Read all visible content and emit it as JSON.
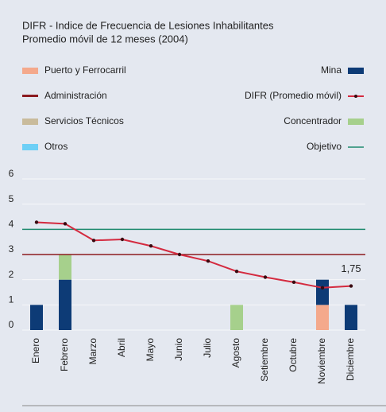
{
  "chart_data": {
    "type": "bar",
    "title": "DIFR - Indice de Frecuencia de Lesiones Inhabilitantes",
    "subtitle": "Promedio móvil de 12 meses (2004)",
    "categories": [
      "Enero",
      "Febrero",
      "Marzo",
      "Abril",
      "Mayo",
      "Junio",
      "Julio",
      "Agosto",
      "Setiembre",
      "Octubre",
      "Noviembre",
      "Diciembre"
    ],
    "stacked": true,
    "series": [
      {
        "name": "Puerto y Ferrocarril",
        "color": "#f4a98c",
        "values": [
          null,
          null,
          null,
          null,
          null,
          null,
          null,
          null,
          null,
          null,
          1,
          null
        ]
      },
      {
        "name": "Administración",
        "color": "#8b1a1f",
        "legend_style": "line",
        "values": [
          null,
          null,
          null,
          null,
          null,
          null,
          null,
          null,
          null,
          null,
          null,
          null
        ]
      },
      {
        "name": "Servicios Técnicos",
        "color": "#c9bb9c",
        "values": [
          null,
          null,
          null,
          null,
          null,
          null,
          null,
          null,
          null,
          null,
          null,
          null
        ]
      },
      {
        "name": "Otros",
        "color": "#6dcff6",
        "values": [
          null,
          null,
          null,
          null,
          null,
          null,
          null,
          null,
          null,
          null,
          null,
          null
        ]
      },
      {
        "name": "Mina",
        "color": "#0d3b76",
        "values": [
          1,
          2,
          null,
          null,
          null,
          null,
          null,
          null,
          null,
          null,
          1,
          1
        ]
      },
      {
        "name": "DIFR (Promedio móvil)",
        "color": "#d42a3f",
        "kind": "line",
        "values": [
          4.28,
          4.22,
          3.56,
          3.6,
          3.34,
          3.0,
          2.74,
          2.33,
          2.1,
          1.9,
          1.68,
          1.75
        ],
        "value_labels": [
          null,
          null,
          null,
          null,
          null,
          null,
          null,
          null,
          null,
          null,
          null,
          "1,75"
        ]
      },
      {
        "name": "Concentrador",
        "color": "#a6d08c",
        "values": [
          null,
          1,
          null,
          null,
          null,
          null,
          null,
          1,
          null,
          null,
          null,
          null
        ]
      },
      {
        "name": "Objetivo",
        "color": "#1f8a6f",
        "kind": "reference",
        "value": 4
      }
    ],
    "reference_lines": [
      {
        "value": 3,
        "color": "#8b1a1f"
      }
    ],
    "ylim": [
      0,
      6
    ],
    "yticks": [
      0,
      1,
      2,
      3,
      4,
      5,
      6
    ],
    "grid": true
  }
}
